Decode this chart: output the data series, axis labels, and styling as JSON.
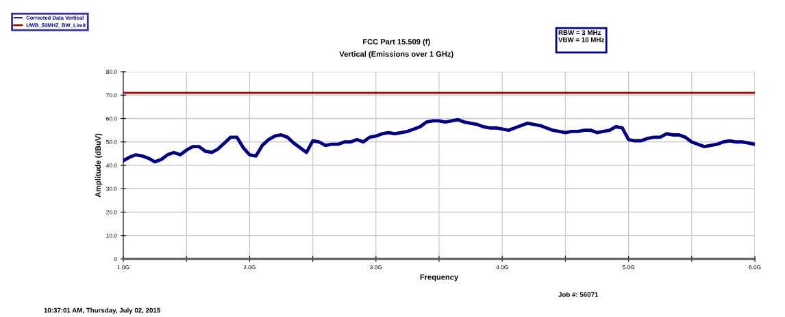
{
  "chart_data": {
    "type": "line",
    "title": "FCC Part 15.509 (f)",
    "subtitle": "Vertical (Emissions over 1 GHz)",
    "xlabel": "Frequency",
    "ylabel": "Amplitude (dBuV)",
    "annotations": [
      "RBW = 3 MHz\nVBW = 10 MHz",
      "Job #: 56071",
      "10:37:01 AM, Thursday, July 02, 2015"
    ],
    "x": [
      1.0,
      1.05,
      1.1,
      1.15,
      1.2,
      1.25,
      1.3,
      1.35,
      1.4,
      1.45,
      1.5,
      1.55,
      1.6,
      1.65,
      1.7,
      1.75,
      1.8,
      1.85,
      1.9,
      1.95,
      2.0,
      2.05,
      2.1,
      2.15,
      2.2,
      2.25,
      2.3,
      2.35,
      2.4,
      2.45,
      2.5,
      2.55,
      2.6,
      2.65,
      2.7,
      2.75,
      2.8,
      2.85,
      2.9,
      2.95,
      3.0,
      3.05,
      3.1,
      3.15,
      3.2,
      3.25,
      3.3,
      3.35,
      3.4,
      3.45,
      3.5,
      3.55,
      3.6,
      3.65,
      3.7,
      3.75,
      3.8,
      3.85,
      3.9,
      3.95,
      4.0,
      4.05,
      4.1,
      4.15,
      4.2,
      4.25,
      4.3,
      4.35,
      4.4,
      4.45,
      4.5,
      4.55,
      4.6,
      4.65,
      4.7,
      4.75,
      4.8,
      4.85,
      4.9,
      4.95,
      5.0,
      5.05,
      5.1,
      5.15,
      5.2,
      5.25,
      5.3,
      5.35,
      5.4,
      5.45,
      5.5,
      5.55,
      5.6,
      5.65,
      5.7,
      5.75,
      5.8,
      5.85,
      5.9,
      5.95,
      6.0
    ],
    "series": [
      {
        "name": "Corrected Data Vertical",
        "color": "#000080",
        "values": [
          42,
          43.5,
          44.5,
          44,
          43,
          41.5,
          42.5,
          44.5,
          45.5,
          44.5,
          46.5,
          48,
          48,
          46,
          45.5,
          47,
          49.5,
          52,
          52,
          47.5,
          44.5,
          44,
          48.5,
          51,
          52.5,
          53,
          52,
          49.5,
          47.5,
          45.5,
          50.5,
          50,
          48.5,
          49,
          49,
          50,
          50,
          51,
          50,
          52,
          52.5,
          53.5,
          54,
          53.5,
          54,
          54.5,
          55.5,
          56.5,
          58.5,
          59,
          59,
          58.5,
          59,
          59.5,
          58.5,
          58,
          57.5,
          56.5,
          56,
          56,
          55.5,
          55,
          56,
          57,
          58,
          57.5,
          57,
          56,
          55,
          54.5,
          54,
          54.5,
          54.5,
          55,
          55,
          54,
          54.5,
          55,
          56.5,
          56,
          51,
          50.5,
          50.5,
          51.5,
          52,
          52,
          53.5,
          53,
          53,
          52,
          50,
          49,
          48,
          48.5,
          49,
          50,
          50.5,
          50,
          50,
          49.5,
          49
        ]
      }
    ],
    "ref_lines": [
      {
        "axis": "y",
        "value": 71,
        "label": "UWB_50MHZ_BW_Limit",
        "color": "#990000"
      }
    ],
    "xlim": [
      1.0,
      6.0
    ],
    "xticks": [
      {
        "value": 1.0,
        "label": "1.0G"
      },
      {
        "value": 1.5,
        "label": null
      },
      {
        "value": 2.0,
        "label": "2.0G"
      },
      {
        "value": 2.5,
        "label": null
      },
      {
        "value": 3.0,
        "label": "3.0G"
      },
      {
        "value": 3.5,
        "label": null
      },
      {
        "value": 4.0,
        "label": "4.0G"
      },
      {
        "value": 4.5,
        "label": null
      },
      {
        "value": 5.0,
        "label": "5.0G"
      },
      {
        "value": 5.5,
        "label": null
      },
      {
        "value": 6.0,
        "label": "6.0G"
      }
    ],
    "ylim": [
      0,
      80
    ],
    "yticks": [
      0,
      {
        "value": 10,
        "label": "10.0"
      },
      {
        "value": 20,
        "label": "20.0"
      },
      {
        "value": 30,
        "label": "30.0"
      },
      {
        "value": 40,
        "label": "40.0"
      },
      {
        "value": 50,
        "label": "50.0"
      },
      {
        "value": 60,
        "label": "60.0"
      },
      {
        "value": 70,
        "label": "70.0"
      },
      {
        "value": 80,
        "label": "80.0"
      }
    ],
    "grid": true,
    "legend": "top left",
    "marker": "none",
    "line_style": "solid"
  }
}
